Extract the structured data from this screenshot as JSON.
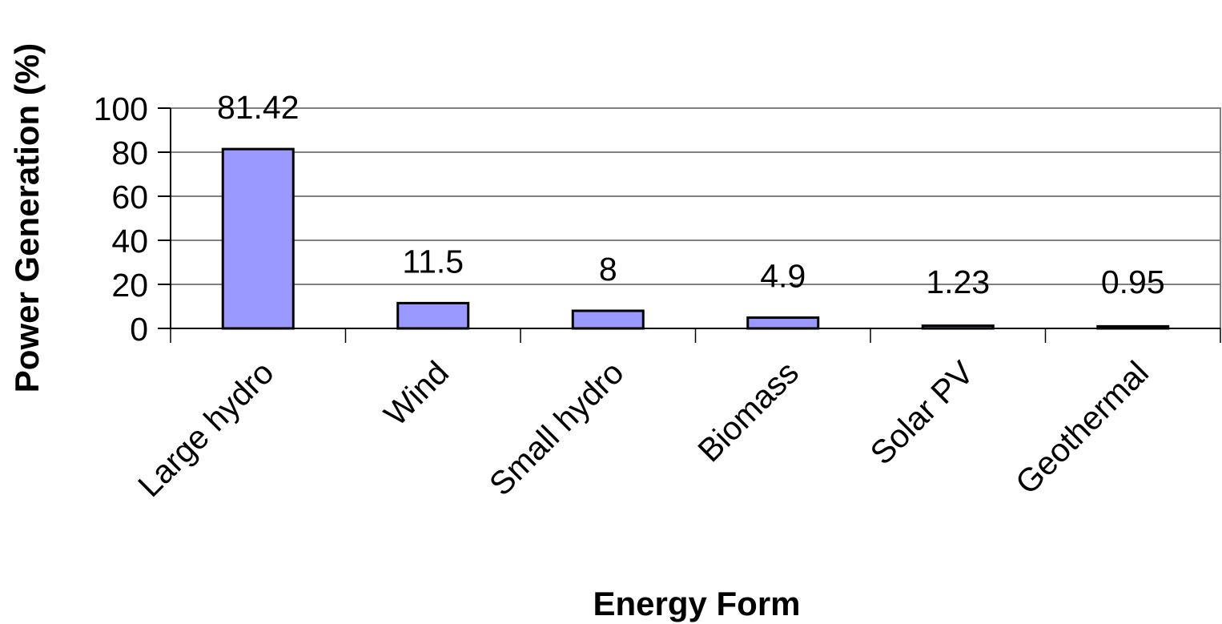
{
  "chart_data": {
    "type": "bar",
    "categories": [
      "Large hydro",
      "Wind",
      "Small hydro",
      "Biomass",
      "Solar PV",
      "Geothermal"
    ],
    "values": [
      81.42,
      11.5,
      8,
      4.9,
      1.23,
      0.95
    ],
    "data_labels": [
      "81.42",
      "11.5",
      "8",
      "4.9",
      "1.23",
      "0.95"
    ],
    "title": "",
    "xlabel": "Energy Form",
    "ylabel": "Power Generation (%)",
    "ylim": [
      0,
      100
    ],
    "yticks": [
      0,
      20,
      40,
      60,
      80,
      100
    ],
    "grid": true,
    "legend": "none",
    "colors": {
      "bar_fill": "#9999ff",
      "bar_stroke": "#000000",
      "grid": "#000000",
      "plot_border": "#808080"
    }
  }
}
